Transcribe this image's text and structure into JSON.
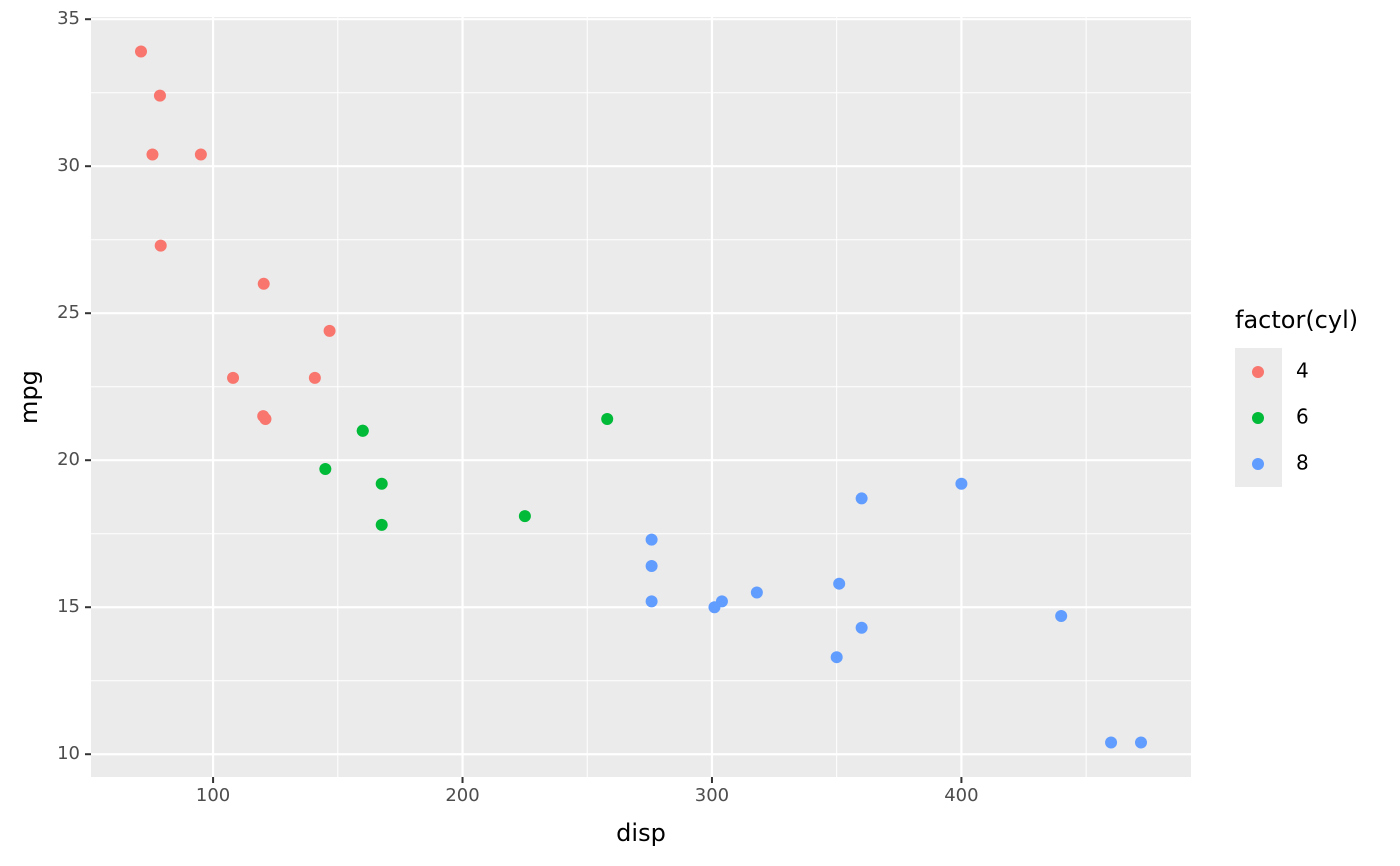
{
  "chart_data": {
    "type": "scatter",
    "x_label": "disp",
    "y_label": "mpg",
    "legend_title": "factor(cyl)",
    "legend_position": "right",
    "xlim": [
      51.055,
      492.045
    ],
    "ylim": [
      9.225,
      35.075
    ],
    "xticks": [
      100,
      200,
      300,
      400
    ],
    "yticks": [
      10,
      15,
      20,
      25,
      30,
      35
    ],
    "xminor": [
      150,
      250,
      350,
      450
    ],
    "yminor": [
      12.5,
      17.5,
      22.5,
      27.5,
      32.5
    ],
    "grid": true,
    "series": [
      {
        "name": "4",
        "color": "#F8766D",
        "x": [
          108,
          146.7,
          140.8,
          78.7,
          75.7,
          71.1,
          120.1,
          79,
          120.3,
          95.1,
          121
        ],
        "values": [
          22.8,
          24.4,
          22.8,
          32.4,
          30.4,
          33.9,
          21.5,
          27.3,
          26.0,
          30.4,
          21.4
        ]
      },
      {
        "name": "6",
        "color": "#00BA38",
        "x": [
          160,
          160,
          258,
          225,
          167.6,
          167.6,
          145
        ],
        "values": [
          21,
          21,
          21.4,
          18.1,
          19.2,
          17.8,
          19.7
        ]
      },
      {
        "name": "8",
        "color": "#619CFF",
        "x": [
          360,
          360,
          275.8,
          275.8,
          275.8,
          472,
          460,
          440,
          318,
          304,
          350,
          400,
          351,
          301
        ],
        "values": [
          18.7,
          14.3,
          16.4,
          17.3,
          15.2,
          10.4,
          10.4,
          14.7,
          15.5,
          15.2,
          13.3,
          19.2,
          15.8,
          15.0
        ]
      }
    ]
  }
}
